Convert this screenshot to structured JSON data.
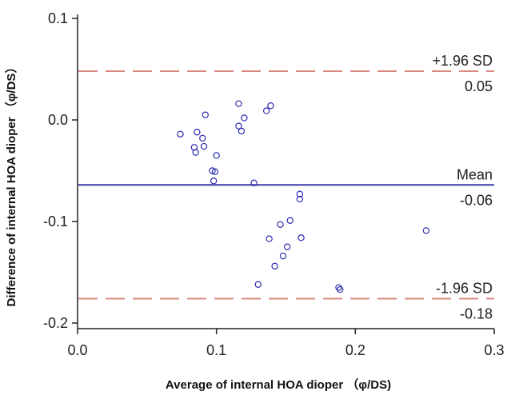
{
  "chart_data": {
    "type": "scatter",
    "title": "",
    "xlabel": "Average of internal HOA dioper （φ/DS)",
    "ylabel": "Difference of internal HOA dioper （φ/DS）",
    "xlim": [
      0.0,
      0.3
    ],
    "ylim": [
      -0.2,
      0.1
    ],
    "x_ticks": [
      0.0,
      0.1,
      0.2,
      0.3
    ],
    "x_tick_labels": [
      "0.0",
      "0.1",
      "0.2",
      "0.3"
    ],
    "y_ticks": [
      0.1,
      0.0,
      -0.1,
      -0.2
    ],
    "y_tick_labels": [
      "0.1",
      "0.0",
      "-0.1",
      "-0.2"
    ],
    "grid": false,
    "series": [
      {
        "marker": "open-circle",
        "color": "#2b2bb0",
        "points": [
          {
            "x": 0.074,
            "y": -0.014
          },
          {
            "x": 0.084,
            "y": -0.027
          },
          {
            "x": 0.085,
            "y": -0.032
          },
          {
            "x": 0.086,
            "y": -0.012
          },
          {
            "x": 0.09,
            "y": -0.018
          },
          {
            "x": 0.091,
            "y": -0.026
          },
          {
            "x": 0.092,
            "y": 0.005
          },
          {
            "x": 0.097,
            "y": -0.05
          },
          {
            "x": 0.098,
            "y": -0.06
          },
          {
            "x": 0.099,
            "y": -0.051
          },
          {
            "x": 0.1,
            "y": -0.035
          },
          {
            "x": 0.116,
            "y": 0.016
          },
          {
            "x": 0.116,
            "y": -0.006
          },
          {
            "x": 0.118,
            "y": -0.011
          },
          {
            "x": 0.12,
            "y": 0.002
          },
          {
            "x": 0.127,
            "y": -0.062
          },
          {
            "x": 0.13,
            "y": -0.162
          },
          {
            "x": 0.136,
            "y": 0.009
          },
          {
            "x": 0.138,
            "y": -0.117
          },
          {
            "x": 0.139,
            "y": 0.014
          },
          {
            "x": 0.142,
            "y": -0.144
          },
          {
            "x": 0.146,
            "y": -0.103
          },
          {
            "x": 0.148,
            "y": -0.134
          },
          {
            "x": 0.151,
            "y": -0.125
          },
          {
            "x": 0.153,
            "y": -0.099
          },
          {
            "x": 0.16,
            "y": -0.073
          },
          {
            "x": 0.16,
            "y": -0.078
          },
          {
            "x": 0.161,
            "y": -0.116
          },
          {
            "x": 0.188,
            "y": -0.165
          },
          {
            "x": 0.189,
            "y": -0.167
          },
          {
            "x": 0.251,
            "y": -0.109
          }
        ]
      }
    ],
    "reference_lines": [
      {
        "label": "+1.96 SD",
        "value": 0.048,
        "value_label": "0.05",
        "color": "#d98a80",
        "style": "dashed"
      },
      {
        "label": "Mean",
        "value": -0.064,
        "value_label": "-0.06",
        "color": "#3a3aa8",
        "style": "solid"
      },
      {
        "label": "-1.96 SD",
        "value": -0.176,
        "value_label": "-0.18",
        "color": "#d98a80",
        "style": "dashed"
      }
    ]
  }
}
